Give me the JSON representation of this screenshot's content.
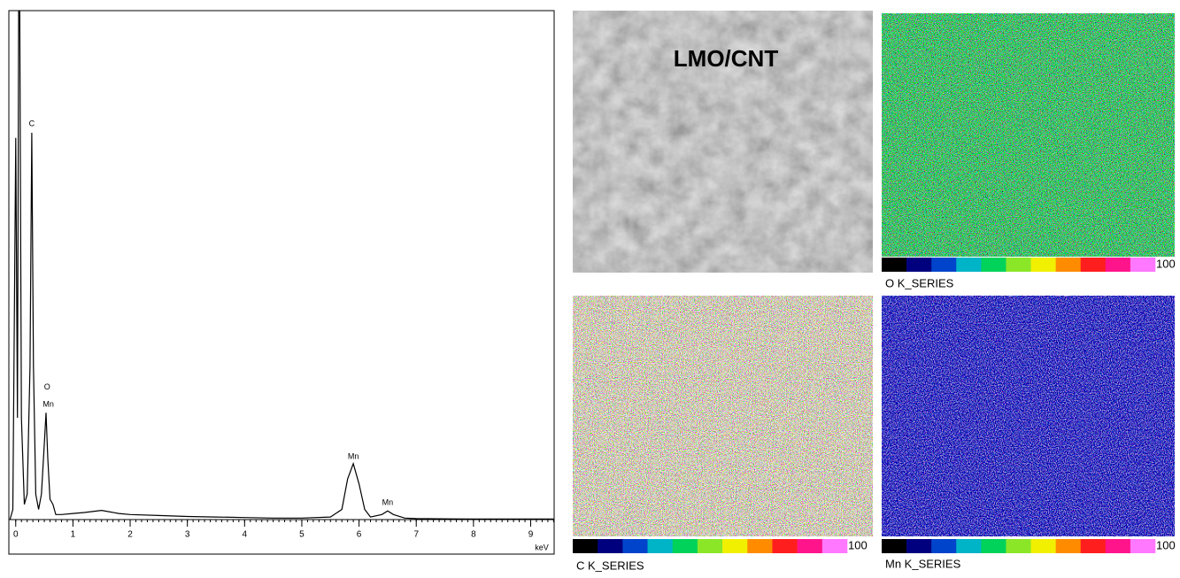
{
  "chart_data": {
    "type": "line",
    "x_label": "keV",
    "xlim": [
      -0.12,
      9.41
    ],
    "ylim": [
      0,
      100
    ],
    "xticks": [
      0,
      1,
      2,
      3,
      4,
      5,
      6,
      7,
      8,
      9
    ],
    "color": "#000000",
    "x": [
      -0.1,
      -0.05,
      0,
      0.03,
      0.06,
      0.1,
      0.15,
      0.2,
      0.25,
      0.28,
      0.31,
      0.35,
      0.4,
      0.45,
      0.5,
      0.53,
      0.56,
      0.6,
      0.65,
      0.7,
      0.8,
      1.0,
      1.2,
      1.5,
      1.8,
      2.0,
      2.5,
      3.0,
      3.5,
      4.0,
      4.5,
      5.0,
      5.5,
      5.7,
      5.8,
      5.9,
      6.0,
      6.1,
      6.2,
      6.4,
      6.5,
      6.6,
      6.8,
      7.0,
      8.0,
      9.0,
      9.4
    ],
    "values": [
      0,
      2,
      75,
      20,
      130,
      20,
      3,
      5,
      30,
      76,
      30,
      5,
      2,
      5,
      15,
      21,
      12,
      4,
      3,
      1,
      1,
      1.2,
      1.4,
      1.8,
      1.2,
      1.0,
      0.8,
      0.6,
      0.5,
      0.4,
      0.3,
      0.3,
      0.5,
      2,
      8,
      11,
      7,
      2,
      0.5,
      1,
      1.7,
      1,
      0.3,
      0.2,
      0.1,
      0.1,
      0.1
    ],
    "annotations": [
      {
        "text": "C",
        "x": 0.28,
        "y": 77.7
      },
      {
        "text": "O",
        "x": 0.55,
        "y": 26
      },
      {
        "text": "Mn",
        "x": 0.57,
        "y": 22.6
      },
      {
        "text": "Mn",
        "x": 5.9,
        "y": 12.3
      },
      {
        "text": "Mn",
        "x": 6.5,
        "y": 3.3
      }
    ]
  },
  "sem_image": {
    "label": "LMO/CNT"
  },
  "colorbar_colors": [
    "#000000",
    "#00007f",
    "#0044cc",
    "#00b4c8",
    "#00d25a",
    "#8ce628",
    "#f0f000",
    "#ff8c00",
    "#ff1e1e",
    "#ff148c",
    "#ff78ff"
  ],
  "maps": [
    {
      "caption": "O K_SERIES",
      "scale_max": 100
    },
    {
      "caption": "C K_SERIES",
      "scale_max": 100
    },
    {
      "caption": "Mn K_SERIES",
      "scale_max": 100
    }
  ]
}
